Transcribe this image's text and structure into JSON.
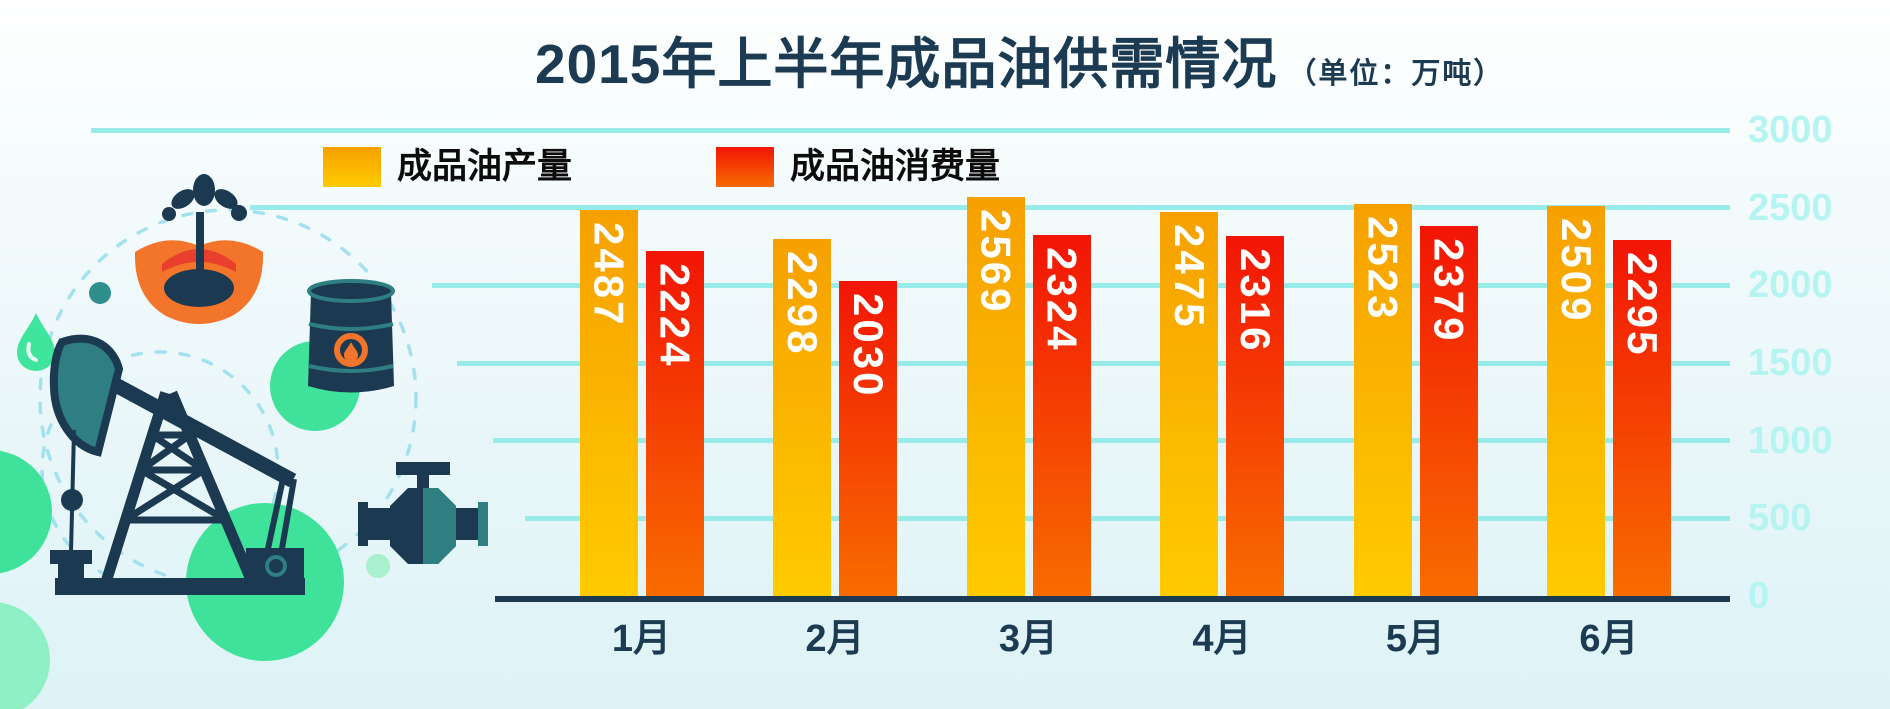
{
  "chart_data": {
    "type": "bar",
    "title": "2015年上半年成品油供需情况",
    "unit_label": "（单位：万吨）",
    "categories": [
      "1月",
      "2月",
      "3月",
      "4月",
      "5月",
      "6月"
    ],
    "series": [
      {
        "name": "成品油产量",
        "values": [
          2487,
          2298,
          2569,
          2475,
          2523,
          2509
        ],
        "color_top": "#f6a000",
        "color_bottom": "#ffcb00"
      },
      {
        "name": "成品油消费量",
        "values": [
          2224,
          2030,
          2324,
          2316,
          2379,
          2295
        ],
        "color_top": "#f21505",
        "color_bottom": "#f86c00"
      }
    ],
    "ylim": [
      0,
      3000
    ],
    "yticks": [
      0,
      500,
      1000,
      1500,
      2000,
      2500,
      3000
    ],
    "grid": true,
    "legend_position": "top-left",
    "value_label_style": "white rotated 90deg inside top of bar",
    "ytick_side": "right"
  },
  "palette": {
    "title_navy": "#1c3a52",
    "axis_baseline_navy": "#1b3950",
    "gridline_cyan": "#97ece9",
    "ytick_label_cyan": "#b5f4f1",
    "month_label_navy": "#1c3a52",
    "legend_text": "#0c0c0c",
    "illustration_navy": "#1b3950",
    "illustration_teal": "#2f7f82",
    "illustration_orange": "#f2752b",
    "illustration_red": "#e8402c",
    "illustration_green": "#3ee29b",
    "illustration_light_green": "#a8f1cc",
    "dashed_path_cyan": "#a5e0ef"
  },
  "icons": [
    "oil-gusher-icon",
    "oil-barrel-icon",
    "pipeline-valve-icon",
    "pumpjack-icon",
    "oil-drop-icon"
  ]
}
